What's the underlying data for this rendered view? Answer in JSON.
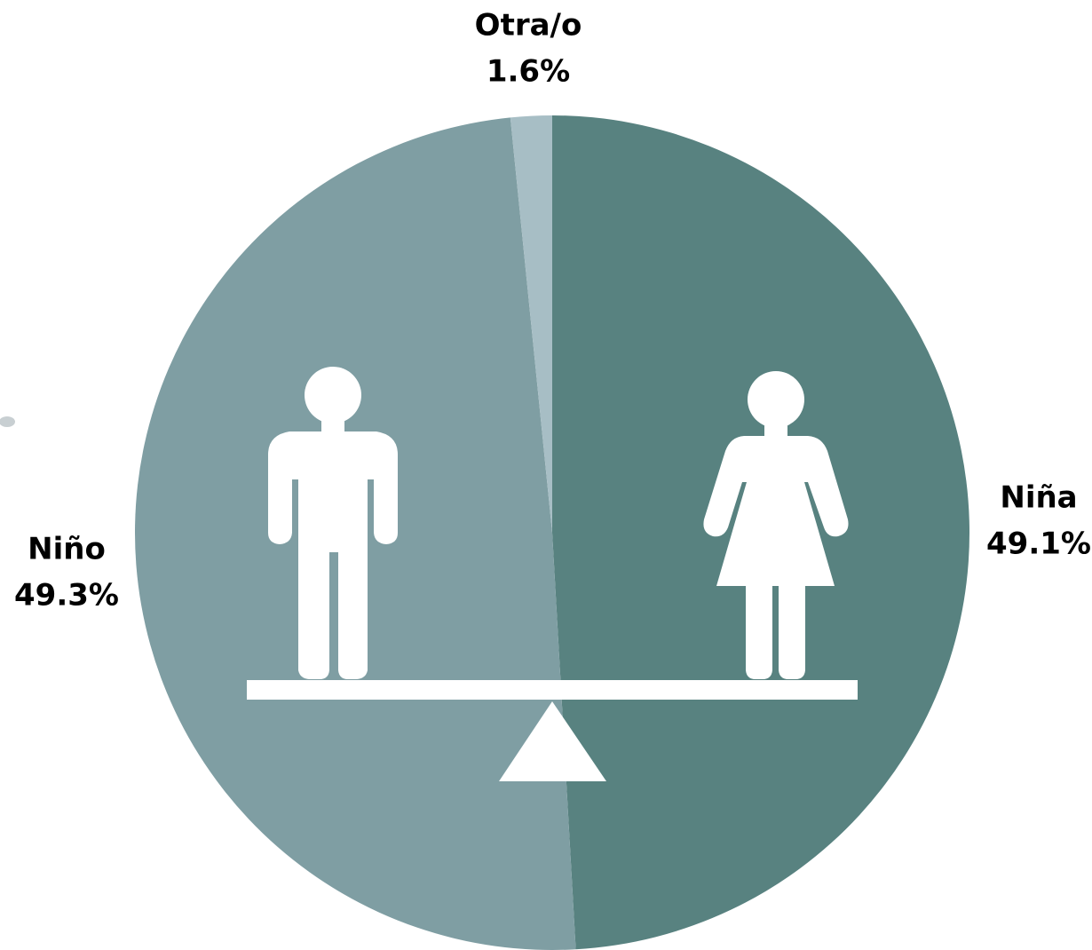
{
  "chart_data": {
    "type": "pie",
    "categories": [
      "Niña",
      "Niño",
      "Otra/o"
    ],
    "values": [
      49.1,
      49.3,
      1.6
    ],
    "value_labels": [
      "49.1%",
      "49.3%",
      "1.6%"
    ],
    "colors": [
      "#588280",
      "#7f9ea3",
      "#a7bec5"
    ]
  }
}
